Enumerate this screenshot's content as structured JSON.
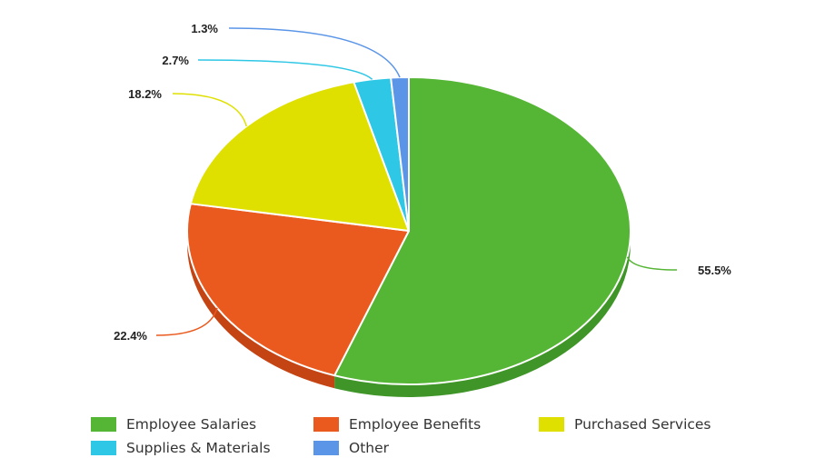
{
  "chart_data": {
    "type": "pie",
    "title": "",
    "slices": [
      {
        "name": "Employee Salaries",
        "value": 55.5,
        "label": "55.5%",
        "color": "#55b535",
        "shade": "#3f9527"
      },
      {
        "name": "Employee Benefits",
        "value": 22.4,
        "label": "22.4%",
        "color": "#ea5a1f",
        "shade": "#c44414"
      },
      {
        "name": "Purchased Services",
        "value": 18.2,
        "label": "18.2%",
        "color": "#dfe000",
        "shade": "#b8b800"
      },
      {
        "name": "Supplies & Materials",
        "value": 2.7,
        "label": "2.7%",
        "color": "#2ec7e6",
        "shade": "#1fa3c0"
      },
      {
        "name": "Other",
        "value": 1.3,
        "label": "1.3%",
        "color": "#5b95e8",
        "shade": "#4275c6"
      }
    ],
    "legend_position": "bottom",
    "style": "3d"
  }
}
